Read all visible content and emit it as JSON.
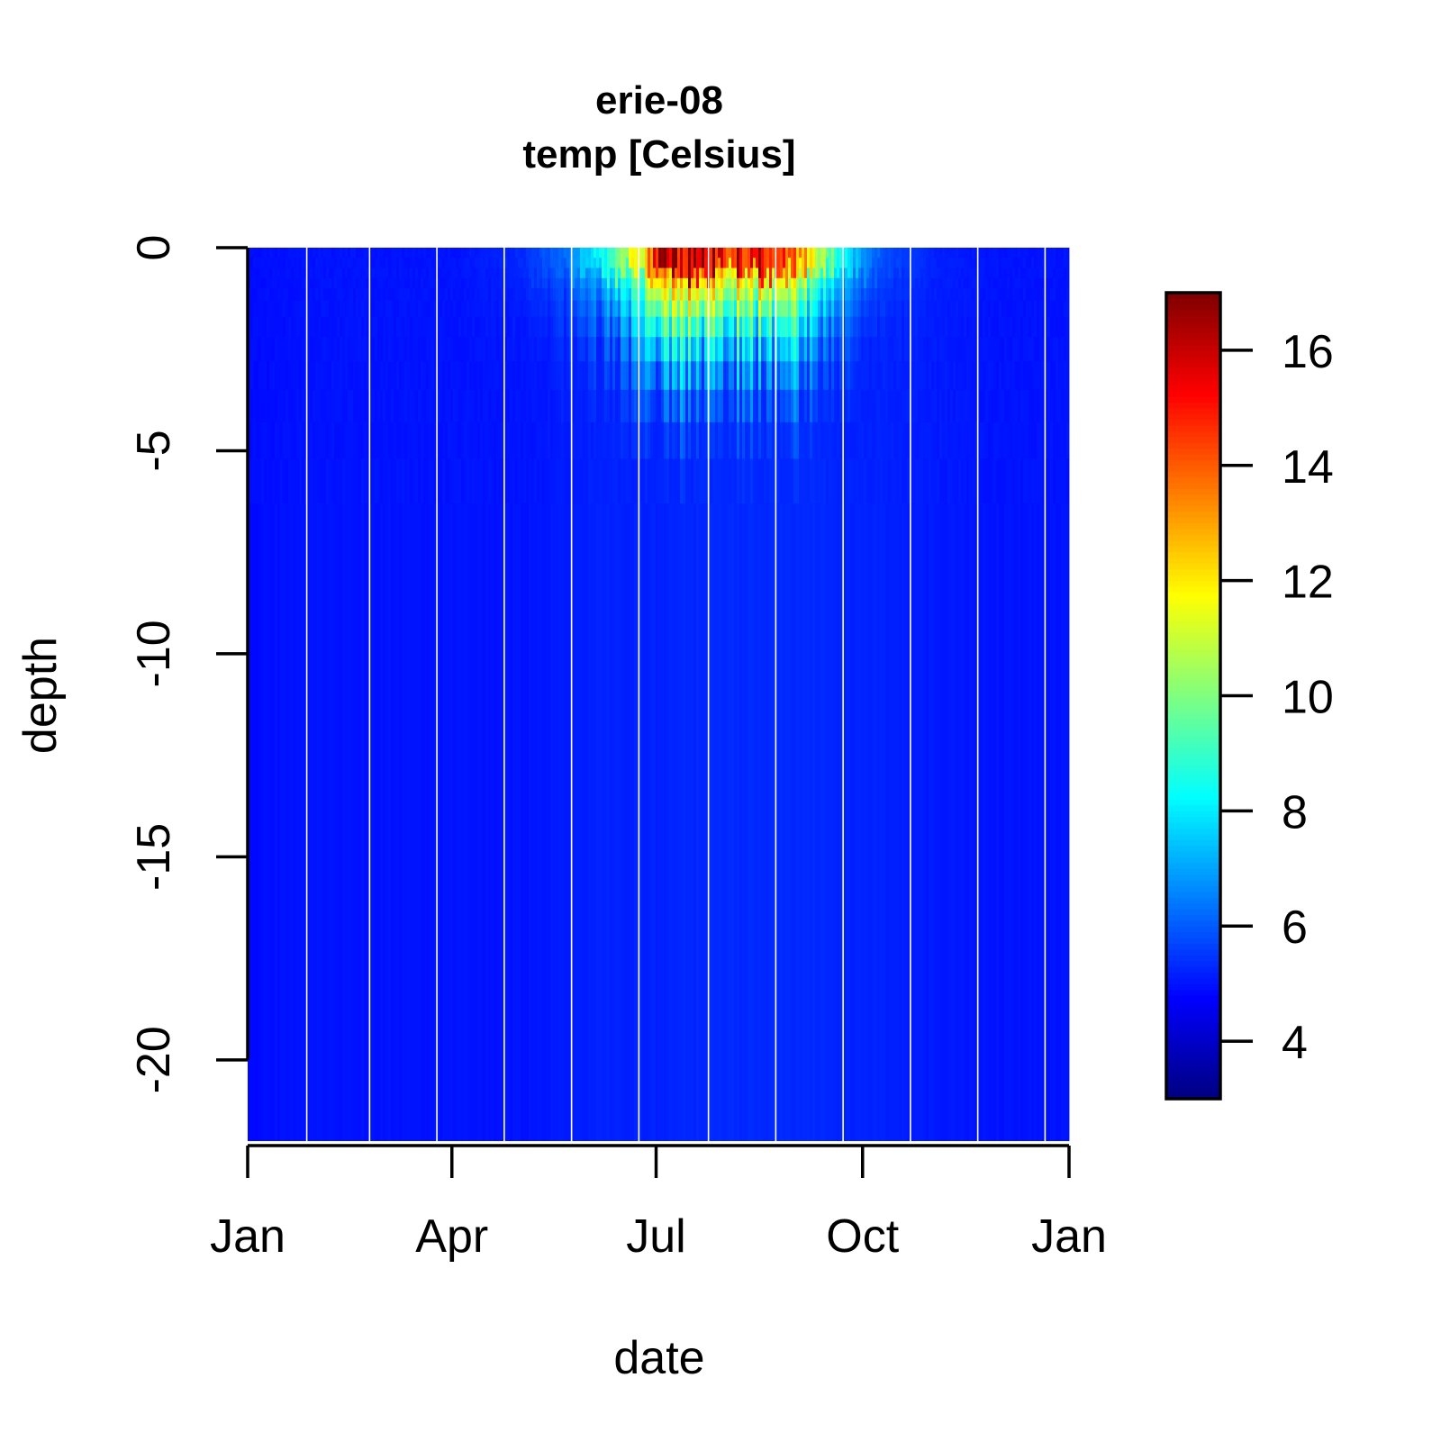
{
  "chart_data": {
    "type": "heatmap",
    "title": "erie-08",
    "subtitle": "temp [Celsius]",
    "xlabel": "date",
    "ylabel": "depth",
    "x_ticks": [
      "Jan",
      "Apr",
      "Jul",
      "Oct",
      "Jan"
    ],
    "x_tick_dates": [
      "2008-01-01",
      "2008-04-01",
      "2008-07-01",
      "2008-10-01",
      "2009-01-01"
    ],
    "xlim": [
      "2008-01-01",
      "2009-01-01"
    ],
    "y_ticks": [
      "0",
      "-5",
      "-10",
      "-15",
      "-20"
    ],
    "y_tick_values": [
      0,
      -5,
      -10,
      -15,
      -20
    ],
    "ylim": [
      -22,
      0
    ],
    "colorbar": {
      "range": [
        3,
        17
      ],
      "ticks": [
        "4",
        "6",
        "8",
        "10",
        "12",
        "14",
        "16"
      ],
      "tick_values": [
        4,
        6,
        8,
        10,
        12,
        14,
        16
      ],
      "colormap": [
        "#00007f",
        "#0000ff",
        "#007fff",
        "#00ffff",
        "#7fff7f",
        "#ffff00",
        "#ff7f00",
        "#ff0000",
        "#7f0000"
      ]
    },
    "gaps": [
      "2008-01-27",
      "2008-02-24",
      "2008-03-25",
      "2008-04-24",
      "2008-05-24",
      "2008-06-23",
      "2008-07-24",
      "2008-08-23",
      "2008-09-22",
      "2008-10-22",
      "2008-11-21",
      "2008-12-21"
    ],
    "temperature_profile": [
      {
        "date": "2008-01-01",
        "surface": 4.8,
        "bottom": 4.9
      },
      {
        "date": "2008-02-01",
        "surface": 5.0,
        "bottom": 5.0
      },
      {
        "date": "2008-03-01",
        "surface": 5.0,
        "bottom": 5.0
      },
      {
        "date": "2008-04-01",
        "surface": 5.0,
        "bottom": 5.0
      },
      {
        "date": "2008-05-01",
        "surface": 5.3,
        "bottom": 5.0
      },
      {
        "date": "2008-05-20",
        "surface": 6.2,
        "bottom": 5.1
      },
      {
        "date": "2008-06-10",
        "surface": 9.0,
        "bottom": 5.2
      },
      {
        "date": "2008-06-25",
        "surface": 12.0,
        "bottom": 5.2
      },
      {
        "date": "2008-07-01",
        "surface": 15.5,
        "bottom": 5.2
      },
      {
        "date": "2008-07-20",
        "surface": 16.2,
        "bottom": 5.3
      },
      {
        "date": "2008-08-10",
        "surface": 15.0,
        "bottom": 5.3
      },
      {
        "date": "2008-08-25",
        "surface": 15.8,
        "bottom": 5.3
      },
      {
        "date": "2008-09-10",
        "surface": 11.0,
        "bottom": 5.3
      },
      {
        "date": "2008-09-25",
        "surface": 7.5,
        "bottom": 5.2
      },
      {
        "date": "2008-10-10",
        "surface": 5.8,
        "bottom": 5.2
      },
      {
        "date": "2008-11-01",
        "surface": 5.2,
        "bottom": 5.1
      },
      {
        "date": "2008-12-01",
        "surface": 5.0,
        "bottom": 5.0
      },
      {
        "date": "2009-01-01",
        "surface": 5.0,
        "bottom": 5.0
      }
    ]
  }
}
